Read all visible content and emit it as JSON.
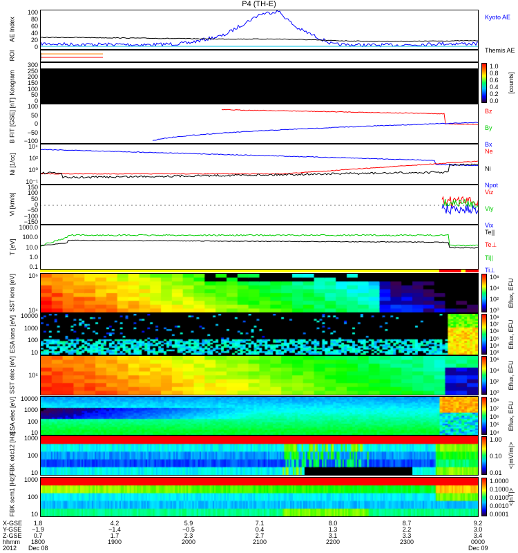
{
  "title": "P4 (TH-E)",
  "panels": [
    {
      "id": "ae",
      "ylabel": "AE Index",
      "ticks": [
        "100",
        "80",
        "60",
        "40",
        "20",
        "0"
      ],
      "legend": [
        {
          "t": "Kyoto AE",
          "c": "#0000ff"
        },
        {
          "t": "Themis AE",
          "c": "#000000"
        }
      ]
    },
    {
      "id": "roi",
      "ylabel": "ROI",
      "ticks": [],
      "legend": []
    },
    {
      "id": "keo",
      "ylabel": "Keogram",
      "ticks": [
        "300",
        "250",
        "200",
        "150",
        "100",
        "50",
        "0"
      ],
      "legend": [],
      "cbar": {
        "ticks": [
          "1.0",
          "0.8",
          "0.6",
          "0.4",
          "0.2",
          "0.0"
        ],
        "unit": "[counts]"
      }
    },
    {
      "id": "bfit",
      "ylabel": "B FIT [GSE] [nT]",
      "ticks": [
        "100",
        "50",
        "0",
        "−50",
        "−100"
      ],
      "legend": [
        {
          "t": "Bz",
          "c": "#ff0000"
        },
        {
          "t": "By",
          "c": "#00cc00"
        },
        {
          "t": "Bx",
          "c": "#0000ff"
        }
      ]
    },
    {
      "id": "ni",
      "ylabel": "Ni [1/cc]",
      "ticks": [
        "10⁴",
        "10²",
        "10⁰",
        "10⁻¹"
      ],
      "legend": [
        {
          "t": "Ne",
          "c": "#ff0000"
        },
        {
          "t": "Ni",
          "c": "#000000"
        },
        {
          "t": "Npot",
          "c": "#0000ff"
        }
      ]
    },
    {
      "id": "vi",
      "ylabel": "Vi [km/s]",
      "ticks": [
        "150",
        "100",
        "50",
        "0",
        "−50",
        "−100",
        "−150"
      ],
      "legend": [
        {
          "t": "Viz",
          "c": "#ff0000"
        },
        {
          "t": "Viy",
          "c": "#00cc00"
        },
        {
          "t": "Vix",
          "c": "#0000ff"
        }
      ]
    },
    {
      "id": "ti",
      "ylabel": "T [eV]",
      "ticks": [
        "1000.0",
        "100.0",
        "10.0",
        "1.0",
        "0.1"
      ],
      "legend": [
        {
          "t": "Te||",
          "c": "#000000"
        },
        {
          "t": "Te⊥",
          "c": "#ff0000"
        },
        {
          "t": "Ti||",
          "c": "#00cc00"
        },
        {
          "t": "Ti⊥",
          "c": "#0000ff"
        }
      ]
    },
    {
      "id": "ssti",
      "ylabel": "SST ions [eV]",
      "ticks": [
        "10⁶",
        "10⁴"
      ],
      "legend": [],
      "cbar": {
        "ticks": [
          "10⁸",
          "10⁴",
          "10²",
          "10⁰"
        ],
        "unit": "Eflux, EFU"
      }
    },
    {
      "id": "esai",
      "ylabel": "ESA ions [eV]",
      "ticks": [
        "10000",
        "1000",
        "100",
        "10"
      ],
      "legend": [],
      "cbar": {
        "ticks": [
          "10⁸",
          "10⁷",
          "10⁶",
          "10⁵",
          "10⁴",
          "10³"
        ],
        "unit": "Eflux, EFU"
      }
    },
    {
      "id": "sste",
      "ylabel": "SST elec [eV]",
      "ticks": [
        "10⁵"
      ],
      "legend": [],
      "cbar": {
        "ticks": [
          "10⁶",
          "10⁴",
          "10²",
          "10⁰"
        ],
        "unit": "Eflux, EFU"
      }
    },
    {
      "id": "esae",
      "ylabel": "ESA elec [eV]",
      "ticks": [
        "10000",
        "1000",
        "100",
        "10"
      ],
      "legend": [],
      "cbar": {
        "ticks": [
          "10⁸",
          "10⁷",
          "10⁶",
          "10⁵",
          "10⁴"
        ],
        "unit": "Eflux, EFU"
      }
    },
    {
      "id": "fbke",
      "ylabel": "FBK edc12 [Hz]",
      "ticks": [
        "1000",
        "100",
        "10"
      ],
      "legend": [],
      "cbar": {
        "ticks": [
          "1.00",
          "0.10",
          "0.01"
        ],
        "unit": "<|mV/m|>"
      }
    },
    {
      "id": "fbks",
      "ylabel": "FBK scm1 [Hz]",
      "ticks": [
        "1000",
        "100",
        "10"
      ],
      "legend": [],
      "cbar": {
        "ticks": [
          "1.0000",
          "0.1000",
          "0.0100",
          "0.0010",
          "0.0001"
        ],
        "unit": "<|nT|>"
      }
    }
  ],
  "bottom": {
    "row_labels": [
      "X-GSE",
      "Y-GSE",
      "Z-GSE",
      "hhmm",
      "2012"
    ],
    "columns": [
      {
        "x": "1.8",
        "y": "−1.9",
        "z": "0.7",
        "t": "1800",
        "d": "Dec 08"
      },
      {
        "x": "4.2",
        "y": "−1.4",
        "z": "1.7",
        "t": "1900",
        "d": ""
      },
      {
        "x": "5.9",
        "y": "−0.5",
        "z": "2.3",
        "t": "2000",
        "d": ""
      },
      {
        "x": "7.1",
        "y": "0.4",
        "z": "2.7",
        "t": "2100",
        "d": ""
      },
      {
        "x": "8.0",
        "y": "1.3",
        "z": "3.1",
        "t": "2200",
        "d": ""
      },
      {
        "x": "8.7",
        "y": "2.2",
        "z": "3.3",
        "t": "2300",
        "d": ""
      },
      {
        "x": "9.2",
        "y": "3.0",
        "z": "3.4",
        "t": "0000",
        "d": "Dec 09"
      }
    ]
  },
  "chart_data": {
    "type": "line",
    "title": "P4 (TH-E)",
    "x_hours": [
      18,
      18.5,
      19,
      19.5,
      20,
      20.5,
      21,
      21.25,
      21.5,
      22,
      22.5,
      23,
      23.5,
      24
    ],
    "series": [
      {
        "name": "Kyoto AE",
        "values": [
          14,
          12,
          12,
          11,
          15,
          35,
          90,
          98,
          55,
          12,
          10,
          11,
          14,
          14
        ]
      },
      {
        "name": "Themis AE",
        "values": [
          30,
          30,
          29,
          28,
          27,
          26,
          26,
          26,
          25,
          22,
          20,
          20,
          21,
          22
        ]
      }
    ],
    "ylim": [
      0,
      100
    ],
    "colors": {
      "red": "#ff0000",
      "green": "#00cc00",
      "blue": "#0000ff"
    }
  }
}
